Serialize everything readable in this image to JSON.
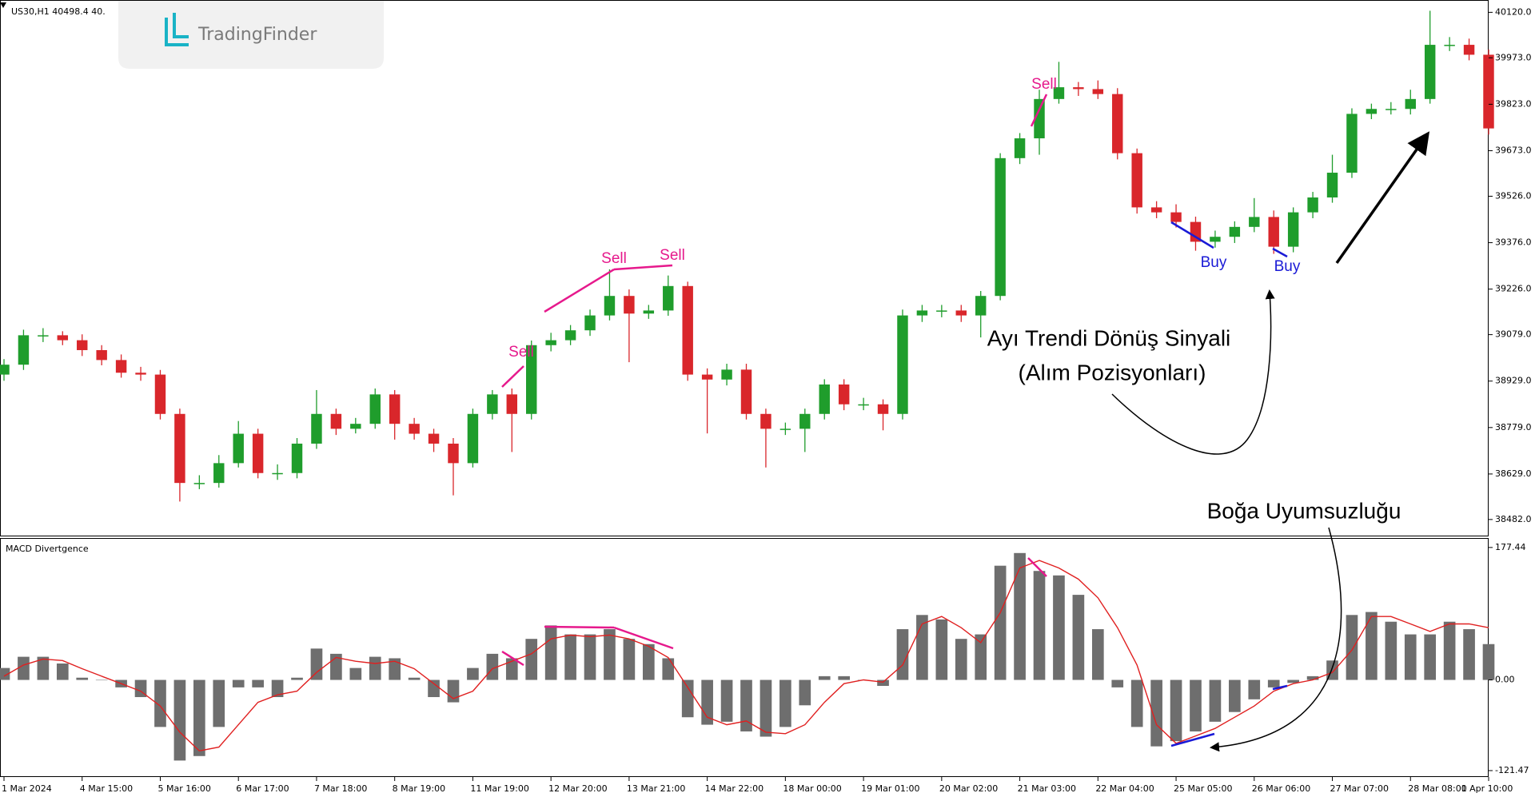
{
  "chart_data": [
    {
      "type": "candlestick",
      "title": "US30,H1  40498.4 40.",
      "watermark": "TradingFinder",
      "categories": [
        "1 Mar 2024",
        null,
        null,
        null,
        "4 Mar 15:00",
        null,
        null,
        null,
        "5 Mar 16:00",
        null,
        null,
        null,
        "6 Mar 17:00",
        null,
        null,
        null,
        "7 Mar 18:00",
        null,
        null,
        null,
        "8 Mar 19:00",
        null,
        null,
        null,
        "11 Mar 19:00",
        null,
        null,
        null,
        "12 Mar 20:00",
        null,
        null,
        null,
        "13 Mar 21:00",
        null,
        null,
        null,
        "14 Mar 22:00",
        null,
        null,
        null,
        "18 Mar 00:00",
        null,
        null,
        null,
        "19 Mar 01:00",
        null,
        null,
        null,
        "20 Mar 02:00",
        null,
        null,
        null,
        "21 Mar 03:00",
        null,
        null,
        null,
        "22 Mar 04:00",
        null,
        null,
        null,
        "25 Mar 05:00",
        null,
        null,
        null,
        "26 Mar 06:00",
        null,
        null,
        null,
        "27 Mar 07:00",
        null,
        null,
        null,
        "28 Mar 08:00",
        null,
        null,
        null,
        "1 Apr 10:00"
      ],
      "open": [
        38950,
        38982,
        39077,
        39077,
        39061,
        39029,
        38997,
        38956,
        38950,
        38823,
        38600,
        38600,
        38664,
        38759,
        38632,
        38632,
        38727,
        38823,
        38775,
        38791,
        38886,
        38791,
        38759,
        38727,
        38664,
        38823,
        38886,
        38823,
        39045,
        39061,
        39093,
        39141,
        39204,
        39147,
        39157,
        39236,
        38950,
        38934,
        38966,
        38823,
        38775,
        38775,
        38823,
        38918,
        38854,
        38854,
        38823,
        39141,
        39157,
        39157,
        39141,
        39204,
        39649,
        39713,
        39840,
        39878,
        39872,
        39856,
        39665,
        39490,
        39474,
        39443,
        39379,
        39395,
        39427,
        39459,
        39363,
        39474,
        39522,
        39602,
        39792,
        39808,
        39808,
        39840,
        40015,
        40015,
        39983
      ],
      "high": [
        39000,
        39095,
        39100,
        39090,
        39080,
        39045,
        39015,
        38975,
        38965,
        38840,
        38625,
        38690,
        38800,
        38775,
        38660,
        38745,
        38900,
        38840,
        38810,
        38905,
        38900,
        38810,
        38775,
        38745,
        38840,
        38900,
        38905,
        39060,
        39085,
        39110,
        39160,
        39290,
        39225,
        39175,
        39270,
        39250,
        38970,
        38985,
        38985,
        38840,
        38795,
        38840,
        38935,
        38935,
        38875,
        38870,
        39160,
        39175,
        39175,
        39175,
        39220,
        39665,
        39730,
        39870,
        39960,
        39895,
        39900,
        39875,
        39680,
        39510,
        39500,
        39460,
        39415,
        39445,
        39520,
        39480,
        39490,
        39540,
        39660,
        39810,
        39825,
        39830,
        39870,
        40125,
        40040,
        40035,
        40000
      ],
      "low": [
        38930,
        38965,
        39055,
        39045,
        39010,
        38980,
        38940,
        38930,
        38805,
        38540,
        38580,
        38585,
        38650,
        38615,
        38610,
        38615,
        38710,
        38755,
        38760,
        38775,
        38740,
        38740,
        38700,
        38560,
        38650,
        38805,
        38700,
        38805,
        39025,
        39045,
        39075,
        39125,
        38990,
        39130,
        39140,
        38930,
        38760,
        38915,
        38805,
        38650,
        38755,
        38700,
        38805,
        38835,
        38835,
        38770,
        38805,
        39120,
        39135,
        39120,
        39070,
        39190,
        39630,
        39660,
        39825,
        39850,
        39840,
        39645,
        39470,
        39455,
        39425,
        39350,
        39360,
        39375,
        39410,
        39340,
        39345,
        39455,
        39505,
        39585,
        39775,
        39790,
        39790,
        39825,
        39995,
        39965,
        39725
      ],
      "close": [
        38982,
        39077,
        39077,
        39061,
        39029,
        38997,
        38956,
        38950,
        38823,
        38600,
        38600,
        38664,
        38759,
        38632,
        38632,
        38727,
        38823,
        38775,
        38791,
        38886,
        38791,
        38759,
        38727,
        38664,
        38823,
        38886,
        38823,
        39045,
        39061,
        39093,
        39141,
        39204,
        39147,
        39157,
        39236,
        38950,
        38934,
        38966,
        38823,
        38775,
        38775,
        38823,
        38918,
        38854,
        38854,
        38823,
        39141,
        39157,
        39157,
        39141,
        39204,
        39649,
        39713,
        39840,
        39878,
        39872,
        39856,
        39665,
        39490,
        39474,
        39443,
        39379,
        39395,
        39427,
        39459,
        39363,
        39474,
        39522,
        39602,
        39792,
        39808,
        39808,
        39840,
        40015,
        40015,
        39983,
        39745
      ],
      "up_color": "#1f9d2c",
      "down_color": "#d9262b",
      "ylim": [
        38430,
        40152
      ],
      "yticks": [
        {
          "value": 40120,
          "label": "40120.0"
        },
        {
          "value": 39973,
          "label": "39973.0"
        },
        {
          "value": 39823,
          "label": "39823.0"
        },
        {
          "value": 39673,
          "label": "39673.0"
        },
        {
          "value": 39526,
          "label": "39526.0"
        },
        {
          "value": 39376,
          "label": "39376.0"
        },
        {
          "value": 39226,
          "label": "39226.0"
        },
        {
          "value": 39079,
          "label": "39079.0"
        },
        {
          "value": 38929,
          "label": "38929.0"
        },
        {
          "value": 38779,
          "label": "38779.0"
        },
        {
          "value": 38629,
          "label": "38629.0"
        },
        {
          "value": 38482,
          "label": "38482.0"
        }
      ],
      "annotations": [
        "Sell",
        "Sell",
        "Sell",
        "Sell",
        "Buy",
        "Buy",
        "Ayı Trendi Dönüş Sinyali",
        "(Alım Pozisyonları)",
        "Boğa Uyumsuzluğu"
      ]
    },
    {
      "type": "macd",
      "title": "MACD Divertgence",
      "histogram": {
        "color": "#6e6e6e",
        "values": [
          16,
          31,
          31,
          22,
          3,
          0,
          -10,
          -23,
          -63,
          -108,
          -102,
          -63,
          -10,
          -10,
          -23,
          3,
          42,
          35,
          16,
          31,
          29,
          3,
          -23,
          -30,
          16,
          35,
          29,
          55,
          73,
          61,
          61,
          68,
          55,
          48,
          29,
          -50,
          -60,
          -56,
          -69,
          -76,
          -63,
          -34,
          5,
          5,
          0,
          -8,
          68,
          87,
          81,
          55,
          61,
          153,
          170,
          146,
          140,
          114,
          68,
          -10,
          -63,
          -89,
          -82,
          -69,
          -56,
          -43,
          -26,
          -10,
          -4,
          5,
          26,
          87,
          91,
          78,
          61,
          61,
          78,
          68,
          48
        ]
      },
      "signal": {
        "color": "#e02020",
        "values": [
          5,
          20,
          28,
          26,
          15,
          5,
          -5,
          -15,
          -35,
          -70,
          -95,
          -90,
          -60,
          -30,
          -20,
          -15,
          10,
          30,
          25,
          22,
          25,
          15,
          -5,
          -25,
          -15,
          15,
          25,
          35,
          55,
          60,
          58,
          60,
          55,
          45,
          30,
          -10,
          -50,
          -60,
          -55,
          -70,
          -72,
          -60,
          -30,
          -5,
          0,
          -3,
          20,
          75,
          85,
          70,
          50,
          90,
          150,
          160,
          150,
          135,
          110,
          70,
          20,
          -60,
          -85,
          -75,
          -65,
          -50,
          -35,
          -15,
          -5,
          0,
          10,
          40,
          85,
          85,
          75,
          65,
          75,
          75,
          70
        ]
      },
      "ylim": [
        -129,
        188
      ],
      "yticks": [
        177.44,
        {
          "value": 0,
          "label": "0.00"
        },
        -121.47
      ]
    }
  ]
}
